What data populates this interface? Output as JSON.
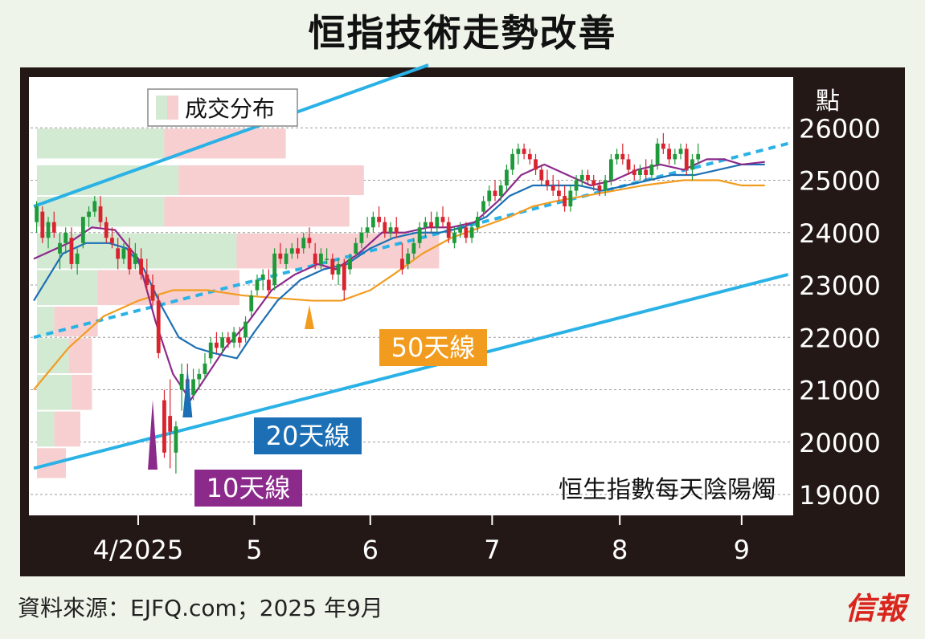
{
  "title": "恒指技術走勢改善",
  "source_note": "資料來源：EJFQ.com；2025 年9月",
  "brand_logo": "信報",
  "colors": {
    "background": "#eef4ea",
    "frame": "#231815",
    "plot_bg": "#ffffff",
    "up_candle": "#1f9a3a",
    "down_candle": "#d9232e",
    "ma10": "#8b2a8b",
    "ma20": "#1c6fb5",
    "ma50": "#f29c1f",
    "channel": "#2ab2e6",
    "volume_up": "#d2e9d2",
    "volume_down": "#f7cfd0"
  },
  "chart_data": {
    "type": "candlestick",
    "series_caption": "恒生指數每天陰陽燭",
    "y_unit_label": "點",
    "ylim": [
      18800,
      26800
    ],
    "y_ticks": [
      19000,
      20000,
      21000,
      22000,
      23000,
      24000,
      25000,
      26000
    ],
    "y_tick_labels": [
      "19000",
      "20000",
      "21000",
      "22000",
      "23000",
      "24000",
      "25000",
      "26000"
    ],
    "x_range_days": [
      0,
      130
    ],
    "x_ticks": [
      {
        "day": 18,
        "label": "4/2025"
      },
      {
        "day": 38,
        "label": "5"
      },
      {
        "day": 58,
        "label": "6"
      },
      {
        "day": 79,
        "label": "7"
      },
      {
        "day": 101,
        "label": "8"
      },
      {
        "day": 122,
        "label": "9"
      }
    ],
    "volume_profile_legend": "成交分布",
    "volume_profile": [
      {
        "low": 25400,
        "high": 26000,
        "up": 44,
        "down": 42
      },
      {
        "low": 24700,
        "high": 25300,
        "up": 49,
        "down": 64
      },
      {
        "low": 24100,
        "high": 24700,
        "up": 44,
        "down": 64
      },
      {
        "low": 23300,
        "high": 24000,
        "up": 69,
        "down": 70
      },
      {
        "low": 22600,
        "high": 23300,
        "up": 21,
        "down": 49
      },
      {
        "low": 22000,
        "high": 22600,
        "up": 6,
        "down": 15
      },
      {
        "low": 21300,
        "high": 22000,
        "up": 11,
        "down": 8
      },
      {
        "low": 20600,
        "high": 21300,
        "up": 12,
        "down": 7
      },
      {
        "low": 19900,
        "high": 20600,
        "up": 6,
        "down": 9
      },
      {
        "low": 19300,
        "high": 19900,
        "up": 0,
        "down": 10
      },
      {
        "low": 18800,
        "high": 19300,
        "up": 0,
        "down": 0
      }
    ],
    "candles": [
      [
        24200,
        24600,
        24000,
        24500
      ],
      [
        24400,
        24500,
        23800,
        23900
      ],
      [
        23900,
        24300,
        23700,
        24200
      ],
      [
        24200,
        24400,
        23900,
        24000
      ],
      [
        23600,
        24000,
        23300,
        23800
      ],
      [
        23800,
        24100,
        23600,
        24000
      ],
      [
        23900,
        24100,
        23300,
        23400
      ],
      [
        23400,
        23700,
        23200,
        23600
      ],
      [
        23800,
        24300,
        23700,
        24300
      ],
      [
        24300,
        24500,
        24100,
        24400
      ],
      [
        24400,
        24700,
        24300,
        24600
      ],
      [
        24500,
        24700,
        24100,
        24200
      ],
      [
        24200,
        24300,
        23800,
        23900
      ],
      [
        23900,
        24100,
        23700,
        23800
      ],
      [
        23700,
        23900,
        23300,
        23500
      ],
      [
        23500,
        23800,
        23400,
        23700
      ],
      [
        23700,
        23900,
        23200,
        23300
      ],
      [
        23400,
        23800,
        23300,
        23600
      ],
      [
        23500,
        23700,
        23100,
        23200
      ],
      [
        23200,
        23500,
        22900,
        23000
      ],
      [
        23000,
        23200,
        22600,
        22700
      ],
      [
        22700,
        22800,
        21600,
        21700
      ],
      [
        20800,
        21000,
        19700,
        19800
      ],
      [
        20500,
        21200,
        19500,
        20200
      ],
      [
        19800,
        20400,
        19400,
        20300
      ],
      [
        21000,
        21500,
        20600,
        21300
      ],
      [
        21200,
        21500,
        20600,
        20900
      ],
      [
        20900,
        21400,
        20800,
        21200
      ],
      [
        21200,
        21400,
        21000,
        21300
      ],
      [
        21300,
        21700,
        21200,
        21500
      ],
      [
        21600,
        22000,
        21500,
        21900
      ],
      [
        21900,
        22100,
        21700,
        21800
      ],
      [
        21800,
        22100,
        21700,
        22000
      ],
      [
        22000,
        22100,
        21800,
        21900
      ],
      [
        21900,
        22200,
        21800,
        22100
      ],
      [
        22000,
        22200,
        21800,
        21900
      ],
      [
        22000,
        22400,
        21900,
        22300
      ],
      [
        22500,
        22900,
        22400,
        22800
      ],
      [
        22900,
        23200,
        22800,
        23100
      ],
      [
        23100,
        23300,
        22900,
        23200
      ],
      [
        23100,
        23300,
        22800,
        22900
      ],
      [
        23000,
        23700,
        22900,
        23600
      ],
      [
        23600,
        23800,
        23400,
        23500
      ],
      [
        23400,
        23700,
        23300,
        23600
      ],
      [
        23600,
        23800,
        23500,
        23700
      ],
      [
        23700,
        23900,
        23500,
        23600
      ],
      [
        23700,
        24000,
        23600,
        23900
      ],
      [
        23900,
        24100,
        23700,
        23800
      ],
      [
        23600,
        23800,
        23300,
        23400
      ],
      [
        23400,
        23700,
        23300,
        23600
      ],
      [
        23500,
        23700,
        23400,
        23500
      ],
      [
        23500,
        23600,
        23100,
        23200
      ],
      [
        23200,
        23500,
        23000,
        23400
      ],
      [
        23400,
        23500,
        22700,
        22900
      ],
      [
        23300,
        23600,
        23200,
        23500
      ],
      [
        23600,
        23900,
        23500,
        23800
      ],
      [
        23800,
        24100,
        23700,
        24000
      ],
      [
        24000,
        24300,
        23900,
        24100
      ],
      [
        24100,
        24400,
        24000,
        24300
      ],
      [
        24300,
        24500,
        24100,
        24200
      ],
      [
        24200,
        24300,
        23900,
        24000
      ],
      [
        24000,
        24200,
        23900,
        24100
      ],
      [
        24100,
        24300,
        23900,
        24000
      ],
      [
        23500,
        23800,
        23200,
        23300
      ],
      [
        23400,
        23700,
        23300,
        23600
      ],
      [
        23600,
        23900,
        23500,
        23800
      ],
      [
        23800,
        24200,
        23700,
        24100
      ],
      [
        24100,
        24300,
        23900,
        24200
      ],
      [
        24200,
        24400,
        24000,
        24100
      ],
      [
        24100,
        24400,
        24000,
        24300
      ],
      [
        24300,
        24500,
        24100,
        24200
      ],
      [
        24200,
        24300,
        23800,
        23900
      ],
      [
        23800,
        24100,
        23700,
        24000
      ],
      [
        24000,
        24200,
        23900,
        24100
      ],
      [
        24100,
        24200,
        23800,
        23900
      ],
      [
        23900,
        24200,
        23800,
        24100
      ],
      [
        24100,
        24400,
        24000,
        24300
      ],
      [
        24400,
        24700,
        24300,
        24600
      ],
      [
        24600,
        24900,
        24500,
        24800
      ],
      [
        24800,
        25000,
        24600,
        24700
      ],
      [
        24700,
        25000,
        24600,
        24900
      ],
      [
        24900,
        25300,
        24800,
        25200
      ],
      [
        25200,
        25600,
        25100,
        25500
      ],
      [
        25500,
        25700,
        25300,
        25600
      ],
      [
        25600,
        25700,
        25400,
        25500
      ],
      [
        25500,
        25600,
        25300,
        25400
      ],
      [
        25400,
        25500,
        25100,
        25200
      ],
      [
        25200,
        25300,
        24900,
        25000
      ],
      [
        25000,
        25200,
        24800,
        24900
      ],
      [
        24900,
        25100,
        24700,
        24800
      ],
      [
        24800,
        25000,
        24600,
        24700
      ],
      [
        24700,
        24900,
        24400,
        24500
      ],
      [
        24500,
        24900,
        24400,
        24800
      ],
      [
        24800,
        25100,
        24700,
        25000
      ],
      [
        25000,
        25200,
        24900,
        25100
      ],
      [
        25100,
        25200,
        24900,
        25000
      ],
      [
        25000,
        25100,
        24800,
        24900
      ],
      [
        24900,
        25000,
        24700,
        24800
      ],
      [
        24800,
        25100,
        24700,
        25000
      ],
      [
        25000,
        25500,
        24900,
        25400
      ],
      [
        25400,
        25600,
        25300,
        25500
      ],
      [
        25500,
        25700,
        25300,
        25400
      ],
      [
        25400,
        25500,
        25100,
        25200
      ],
      [
        25200,
        25300,
        25000,
        25100
      ],
      [
        25100,
        25300,
        25000,
        25200
      ],
      [
        25200,
        25400,
        25000,
        25100
      ],
      [
        25100,
        25400,
        25000,
        25300
      ],
      [
        25300,
        25800,
        25200,
        25700
      ],
      [
        25700,
        25900,
        25500,
        25600
      ],
      [
        25600,
        25700,
        25300,
        25400
      ],
      [
        25400,
        25600,
        25300,
        25500
      ],
      [
        25500,
        25700,
        25400,
        25600
      ],
      [
        25600,
        25700,
        25100,
        25200
      ],
      [
        25200,
        25500,
        25000,
        25400
      ],
      [
        25400,
        25700,
        25300,
        25500
      ]
    ],
    "ma10": [
      [
        0,
        23500
      ],
      [
        6,
        23800
      ],
      [
        10,
        24100
      ],
      [
        14,
        24050
      ],
      [
        18,
        23500
      ],
      [
        21,
        22300
      ],
      [
        24,
        21300
      ],
      [
        27,
        20800
      ],
      [
        30,
        21300
      ],
      [
        33,
        21800
      ],
      [
        37,
        22300
      ],
      [
        41,
        22900
      ],
      [
        45,
        23200
      ],
      [
        49,
        23400
      ],
      [
        52,
        23300
      ],
      [
        56,
        23600
      ],
      [
        60,
        24000
      ],
      [
        64,
        24000
      ],
      [
        68,
        24100
      ],
      [
        72,
        24100
      ],
      [
        76,
        24200
      ],
      [
        80,
        24600
      ],
      [
        84,
        25100
      ],
      [
        88,
        25300
      ],
      [
        92,
        25100
      ],
      [
        96,
        24900
      ],
      [
        100,
        25000
      ],
      [
        104,
        25200
      ],
      [
        108,
        25300
      ],
      [
        112,
        25200
      ],
      [
        116,
        25400
      ],
      [
        119,
        25400
      ],
      [
        122,
        25300
      ],
      [
        126,
        25350
      ]
    ],
    "ma20": [
      [
        0,
        22700
      ],
      [
        5,
        23600
      ],
      [
        9,
        23800
      ],
      [
        13,
        23800
      ],
      [
        16,
        23700
      ],
      [
        19,
        23300
      ],
      [
        22,
        22600
      ],
      [
        25,
        22000
      ],
      [
        28,
        21800
      ],
      [
        31,
        21700
      ],
      [
        35,
        21600
      ],
      [
        38,
        22100
      ],
      [
        42,
        22700
      ],
      [
        46,
        23100
      ],
      [
        50,
        23300
      ],
      [
        54,
        23400
      ],
      [
        58,
        23700
      ],
      [
        62,
        23900
      ],
      [
        66,
        24000
      ],
      [
        70,
        24000
      ],
      [
        74,
        24100
      ],
      [
        78,
        24300
      ],
      [
        82,
        24700
      ],
      [
        86,
        24900
      ],
      [
        90,
        24900
      ],
      [
        94,
        24900
      ],
      [
        98,
        24800
      ],
      [
        102,
        24900
      ],
      [
        106,
        25000
      ],
      [
        110,
        25100
      ],
      [
        114,
        25100
      ],
      [
        118,
        25200
      ],
      [
        122,
        25300
      ],
      [
        126,
        25300
      ]
    ],
    "ma50": [
      [
        0,
        21000
      ],
      [
        6,
        21800
      ],
      [
        12,
        22400
      ],
      [
        18,
        22700
      ],
      [
        24,
        22900
      ],
      [
        30,
        22900
      ],
      [
        36,
        22800
      ],
      [
        42,
        22750
      ],
      [
        48,
        22700
      ],
      [
        53,
        22700
      ],
      [
        58,
        22900
      ],
      [
        62,
        23200
      ],
      [
        67,
        23600
      ],
      [
        72,
        23900
      ],
      [
        77,
        24100
      ],
      [
        82,
        24300
      ],
      [
        86,
        24500
      ],
      [
        90,
        24600
      ],
      [
        95,
        24700
      ],
      [
        100,
        24800
      ],
      [
        105,
        24900
      ],
      [
        112,
        25000
      ],
      [
        118,
        25000
      ],
      [
        122,
        24900
      ],
      [
        126,
        24900
      ]
    ],
    "channel_upper": [
      [
        0,
        24500
      ],
      [
        68,
        27200
      ]
    ],
    "channel_lower": [
      [
        0,
        19500
      ],
      [
        130,
        23200
      ]
    ],
    "trendline_dashed": [
      [
        0,
        22000
      ],
      [
        130,
        25700
      ]
    ],
    "annotations": [
      {
        "label": "10天線",
        "series": "ma10",
        "point": [
          20.5,
          20800
        ]
      },
      {
        "label": "20天線",
        "series": "ma20",
        "point": [
          26.5,
          21550
        ]
      },
      {
        "label": "50天線",
        "series": "ma50",
        "point": [
          47.5,
          22700
        ]
      }
    ]
  }
}
